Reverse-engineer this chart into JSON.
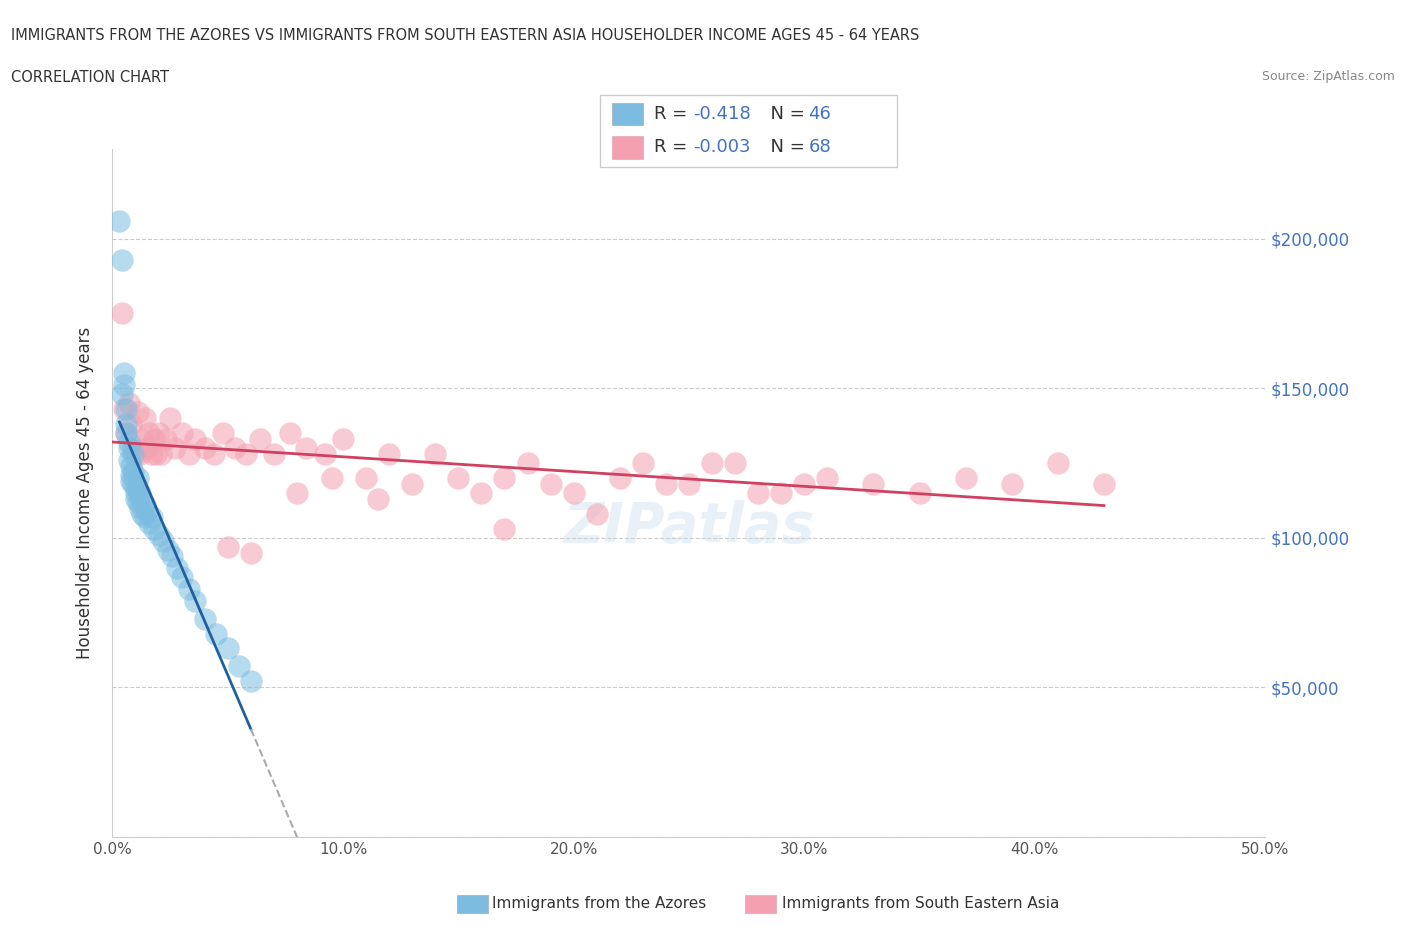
{
  "title_line1": "IMMIGRANTS FROM THE AZORES VS IMMIGRANTS FROM SOUTH EASTERN ASIA HOUSEHOLDER INCOME AGES 45 - 64 YEARS",
  "title_line2": "CORRELATION CHART",
  "source_text": "Source: ZipAtlas.com",
  "ylabel": "Householder Income Ages 45 - 64 years",
  "xlim": [
    0.0,
    0.5
  ],
  "ylim": [
    0,
    230000
  ],
  "xtick_labels": [
    "0.0%",
    "10.0%",
    "20.0%",
    "30.0%",
    "40.0%",
    "50.0%"
  ],
  "xtick_values": [
    0.0,
    0.1,
    0.2,
    0.3,
    0.4,
    0.5
  ],
  "ytick_values": [
    0,
    50000,
    100000,
    150000,
    200000
  ],
  "ytick_labels_right": [
    "",
    "$50,000",
    "$100,000",
    "$150,000",
    "$200,000"
  ],
  "R_azores": -0.418,
  "N_azores": 46,
  "R_sea": -0.003,
  "N_sea": 68,
  "color_azores": "#7bbce0",
  "color_sea": "#f4a0b0",
  "trend_color_azores": "#2060a0",
  "trend_color_sea": "#d04060",
  "legend_label_azores": "Immigrants from the Azores",
  "legend_label_sea": "Immigrants from South Eastern Asia",
  "azores_x": [
    0.003,
    0.004,
    0.004,
    0.005,
    0.005,
    0.006,
    0.006,
    0.006,
    0.007,
    0.007,
    0.007,
    0.008,
    0.008,
    0.008,
    0.009,
    0.009,
    0.009,
    0.01,
    0.01,
    0.01,
    0.011,
    0.011,
    0.011,
    0.012,
    0.012,
    0.013,
    0.013,
    0.014,
    0.014,
    0.015,
    0.016,
    0.017,
    0.018,
    0.02,
    0.022,
    0.024,
    0.026,
    0.028,
    0.03,
    0.033,
    0.036,
    0.04,
    0.045,
    0.05,
    0.055,
    0.06
  ],
  "azores_y": [
    206000,
    193000,
    148000,
    155000,
    151000,
    143000,
    138000,
    135000,
    132000,
    130000,
    126000,
    124000,
    121000,
    119000,
    128000,
    122000,
    118000,
    117000,
    115000,
    113000,
    120000,
    116000,
    112000,
    115000,
    110000,
    113000,
    108000,
    111000,
    107000,
    109000,
    105000,
    107000,
    103000,
    101000,
    99000,
    96000,
    94000,
    90000,
    87000,
    83000,
    79000,
    73000,
    68000,
    63000,
    57000,
    52000
  ],
  "sea_x": [
    0.004,
    0.005,
    0.006,
    0.007,
    0.008,
    0.009,
    0.01,
    0.011,
    0.012,
    0.013,
    0.014,
    0.015,
    0.016,
    0.017,
    0.018,
    0.019,
    0.02,
    0.021,
    0.023,
    0.025,
    0.027,
    0.03,
    0.033,
    0.036,
    0.04,
    0.044,
    0.048,
    0.053,
    0.058,
    0.064,
    0.07,
    0.077,
    0.084,
    0.092,
    0.1,
    0.11,
    0.12,
    0.13,
    0.14,
    0.15,
    0.16,
    0.17,
    0.18,
    0.19,
    0.21,
    0.23,
    0.25,
    0.27,
    0.29,
    0.31,
    0.33,
    0.35,
    0.37,
    0.39,
    0.41,
    0.43,
    0.17,
    0.2,
    0.22,
    0.24,
    0.26,
    0.28,
    0.3,
    0.05,
    0.06,
    0.08,
    0.095,
    0.115
  ],
  "sea_y": [
    175000,
    143000,
    135000,
    145000,
    138000,
    130000,
    128000,
    142000,
    128000,
    133000,
    140000,
    130000,
    135000,
    128000,
    133000,
    128000,
    135000,
    128000,
    133000,
    140000,
    130000,
    135000,
    128000,
    133000,
    130000,
    128000,
    135000,
    130000,
    128000,
    133000,
    128000,
    135000,
    130000,
    128000,
    133000,
    120000,
    128000,
    118000,
    128000,
    120000,
    115000,
    120000,
    125000,
    118000,
    108000,
    125000,
    118000,
    125000,
    115000,
    120000,
    118000,
    115000,
    120000,
    118000,
    125000,
    118000,
    103000,
    115000,
    120000,
    118000,
    125000,
    115000,
    118000,
    97000,
    95000,
    115000,
    120000,
    113000
  ]
}
